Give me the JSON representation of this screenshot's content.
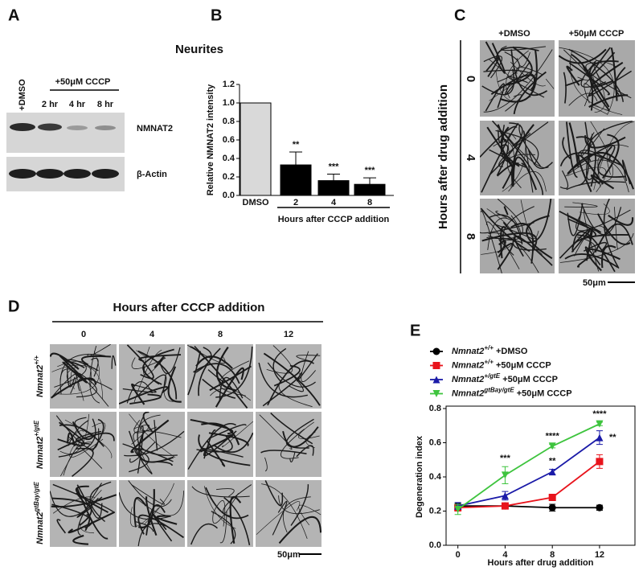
{
  "panel_labels": [
    "A",
    "B",
    "C",
    "D",
    "E"
  ],
  "blot": {
    "title": "Neurites",
    "control": "+DMSO",
    "treatment": "+50μM CCCP",
    "times": [
      "2 hr",
      "4 hr",
      "8 hr"
    ],
    "proteins": [
      "NMNAT2",
      "β-Actin"
    ]
  },
  "micrographs_c": {
    "columns": [
      "+DMSO",
      "+50μM CCCP"
    ],
    "rows": [
      "0",
      "4",
      "8"
    ],
    "row_title": "Hours after drug addition",
    "scale": "50μm"
  },
  "micrographs_d": {
    "title": "Hours after CCCP addition",
    "columns": [
      "0",
      "4",
      "8",
      "12"
    ],
    "rows": [
      {
        "gene": "Nmnat2",
        "sup": "+/+"
      },
      {
        "gene": "Nmnat2",
        "sup": "+/gtE"
      },
      {
        "gene": "Nmnat2",
        "sup": "gtBay/gtE"
      }
    ],
    "scale": "50μm"
  },
  "chart_data": [
    {
      "type": "bar",
      "ylabel": "Relative NMNAT2 intensity",
      "xlabel": "Hours after CCCP addition",
      "categories": [
        "DMSO",
        "2",
        "4",
        "8"
      ],
      "values": [
        1.0,
        0.33,
        0.16,
        0.12
      ],
      "errors": [
        null,
        0.14,
        0.07,
        0.07
      ],
      "colors": [
        "#d9d9d9",
        "#000000",
        "#000000",
        "#000000"
      ],
      "significance": [
        null,
        "**",
        "***",
        "***"
      ],
      "ylim": [
        0,
        1.2
      ],
      "yticks": [
        {
          "value": 0,
          "label": "0.0"
        },
        {
          "value": 0.2,
          "label": "0.2"
        },
        {
          "value": 0.4,
          "label": "0.4"
        },
        {
          "value": 0.6,
          "label": "0.6"
        },
        {
          "value": 0.8,
          "label": "0.8"
        },
        {
          "value": 1,
          "label": "1.0"
        },
        {
          "value": 1.2,
          "label": "1.2"
        }
      ]
    },
    {
      "type": "line",
      "xlabel": "Hours after drug addition",
      "ylabel": "Degeneration index",
      "x": [
        0,
        4,
        8,
        12
      ],
      "xlim": [
        -1,
        15
      ],
      "xticks": [
        0,
        4,
        8,
        12
      ],
      "ylim": [
        0,
        0.8
      ],
      "yticks": [
        {
          "value": 0,
          "label": "0.0"
        },
        {
          "value": 0.2,
          "label": "0.2"
        },
        {
          "value": 0.4,
          "label": "0.4"
        },
        {
          "value": 0.6,
          "label": "0.6"
        },
        {
          "value": 0.8,
          "label": "0.8"
        }
      ],
      "series": [
        {
          "gene": "Nmnat2",
          "genotype": "+/+",
          "treatment": "+DMSO",
          "color": "#000000",
          "marker": "circle",
          "values": [
            0.23,
            0.23,
            0.22,
            0.22
          ],
          "errors": [
            0.015,
            0.015,
            0.02,
            0.015
          ],
          "significance": [
            null,
            null,
            null,
            null
          ]
        },
        {
          "gene": "Nmnat2",
          "genotype": "+/+",
          "treatment": "+50μM CCCP",
          "color": "#e8141c",
          "marker": "square",
          "values": [
            0.22,
            0.23,
            0.28,
            0.49
          ],
          "errors": [
            0.02,
            0.01,
            0.01,
            0.04
          ],
          "significance": [
            null,
            null,
            null,
            null
          ]
        },
        {
          "gene": "Nmnat2",
          "genotype": "+/gtE",
          "treatment": "+50μM CCCP",
          "color": "#1a1aa8",
          "marker": "triangle-up",
          "values": [
            0.23,
            0.29,
            0.43,
            0.63
          ],
          "errors": [
            0.02,
            0.025,
            0.015,
            0.04
          ],
          "significance": [
            null,
            null,
            "**",
            "**"
          ]
        },
        {
          "gene": "Nmnat2",
          "genotype": "gtBay/gtE",
          "treatment": "+50μM CCCP",
          "color": "#3ec43e",
          "marker": "triangle-down",
          "values": [
            0.21,
            0.41,
            0.58,
            0.71
          ],
          "errors": [
            0.03,
            0.05,
            0.01,
            0.01
          ],
          "significance": [
            null,
            "***",
            "****",
            "****"
          ]
        }
      ]
    }
  ]
}
